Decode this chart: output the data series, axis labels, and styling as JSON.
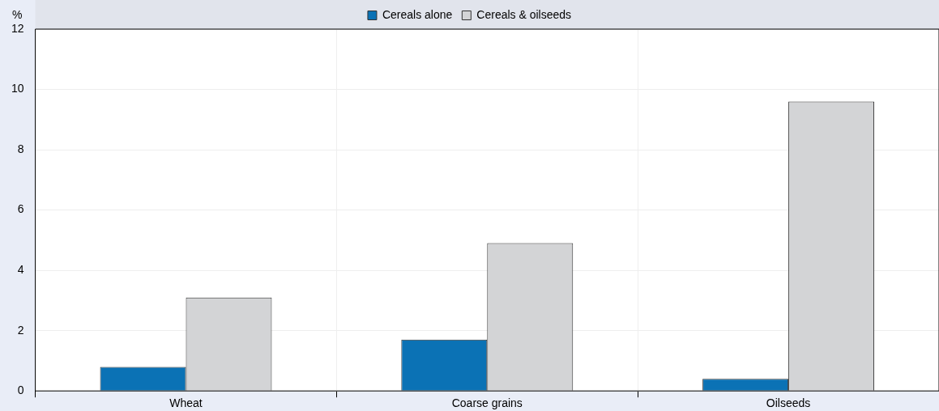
{
  "chart_data": {
    "type": "bar",
    "ylabel": "%",
    "categories": [
      "Wheat",
      "Coarse grains",
      "Oilseeds"
    ],
    "series": [
      {
        "name": "Cereals alone",
        "color": "#0b72b5",
        "values": [
          0.8,
          1.7,
          0.4
        ]
      },
      {
        "name": "Cereals & oilseeds",
        "color": "#d3d4d6",
        "values": [
          3.1,
          4.9,
          9.6
        ]
      }
    ],
    "ylim": [
      0,
      12
    ],
    "yticks": [
      0,
      2,
      4,
      6,
      8,
      10,
      12
    ],
    "grid": true,
    "legend": "top"
  }
}
